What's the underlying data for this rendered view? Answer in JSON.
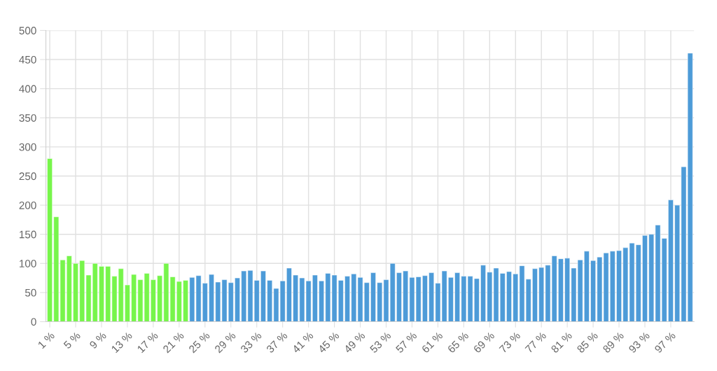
{
  "chart_data": {
    "type": "bar",
    "categories": [
      "1 %",
      null,
      null,
      null,
      "5 %",
      null,
      null,
      null,
      "9 %",
      null,
      null,
      null,
      "13 %",
      null,
      null,
      null,
      "17 %",
      null,
      null,
      null,
      "21 %",
      null,
      null,
      null,
      "25 %",
      null,
      null,
      null,
      "29 %",
      null,
      null,
      null,
      "33 %",
      null,
      null,
      null,
      "37 %",
      null,
      null,
      null,
      "41 %",
      null,
      null,
      null,
      "45 %",
      null,
      null,
      null,
      "49 %",
      null,
      null,
      null,
      "53 %",
      null,
      null,
      null,
      "57 %",
      null,
      null,
      null,
      "61 %",
      null,
      null,
      null,
      "65 %",
      null,
      null,
      null,
      "69 %",
      null,
      null,
      null,
      "73 %",
      null,
      null,
      null,
      "77 %",
      null,
      null,
      null,
      "81 %",
      null,
      null,
      null,
      "85 %",
      null,
      null,
      null,
      "89 %",
      null,
      null,
      null,
      "93 %",
      null,
      null,
      null,
      "97 %",
      null,
      null,
      null
    ],
    "values": [
      280,
      180,
      106,
      113,
      100,
      105,
      80,
      100,
      95,
      95,
      78,
      91,
      63,
      81,
      72,
      83,
      72,
      79,
      100,
      77,
      69,
      71,
      76,
      79,
      66,
      81,
      68,
      72,
      67,
      75,
      87,
      88,
      71,
      87,
      71,
      57,
      70,
      92,
      80,
      75,
      70,
      80,
      70,
      83,
      80,
      71,
      78,
      82,
      76,
      67,
      84,
      67,
      72,
      100,
      84,
      87,
      76,
      77,
      79,
      84,
      66,
      87,
      76,
      84,
      78,
      78,
      74,
      97,
      85,
      92,
      83,
      86,
      82,
      96,
      73,
      91,
      93,
      97,
      113,
      108,
      109,
      92,
      106,
      121,
      105,
      111,
      118,
      121,
      122,
      127,
      135,
      132,
      148,
      150,
      166,
      143,
      209,
      200,
      266,
      461
    ],
    "colors": [
      "#77f54b",
      "#77f54b",
      "#77f54b",
      "#77f54b",
      "#77f54b",
      "#77f54b",
      "#77f54b",
      "#77f54b",
      "#77f54b",
      "#77f54b",
      "#77f54b",
      "#77f54b",
      "#77f54b",
      "#77f54b",
      "#77f54b",
      "#77f54b",
      "#77f54b",
      "#77f54b",
      "#77f54b",
      "#77f54b",
      "#77f54b",
      "#77f54b",
      "#4d9bd8",
      "#4d9bd8",
      "#4d9bd8",
      "#4d9bd8",
      "#4d9bd8",
      "#4d9bd8",
      "#4d9bd8",
      "#4d9bd8",
      "#4d9bd8",
      "#4d9bd8",
      "#4d9bd8",
      "#4d9bd8",
      "#4d9bd8",
      "#4d9bd8",
      "#4d9bd8",
      "#4d9bd8",
      "#4d9bd8",
      "#4d9bd8",
      "#4d9bd8",
      "#4d9bd8",
      "#4d9bd8",
      "#4d9bd8",
      "#4d9bd8",
      "#4d9bd8",
      "#4d9bd8",
      "#4d9bd8",
      "#4d9bd8",
      "#4d9bd8",
      "#4d9bd8",
      "#4d9bd8",
      "#4d9bd8",
      "#4d9bd8",
      "#4d9bd8",
      "#4d9bd8",
      "#4d9bd8",
      "#4d9bd8",
      "#4d9bd8",
      "#4d9bd8",
      "#4d9bd8",
      "#4d9bd8",
      "#4d9bd8",
      "#4d9bd8",
      "#4d9bd8",
      "#4d9bd8",
      "#4d9bd8",
      "#4d9bd8",
      "#4d9bd8",
      "#4d9bd8",
      "#4d9bd8",
      "#4d9bd8",
      "#4d9bd8",
      "#4d9bd8",
      "#4d9bd8",
      "#4d9bd8",
      "#4d9bd8",
      "#4d9bd8",
      "#4d9bd8",
      "#4d9bd8",
      "#4d9bd8",
      "#4d9bd8",
      "#4d9bd8",
      "#4d9bd8",
      "#4d9bd8",
      "#4d9bd8",
      "#4d9bd8",
      "#4d9bd8",
      "#4d9bd8",
      "#4d9bd8",
      "#4d9bd8",
      "#4d9bd8",
      "#4d9bd8",
      "#4d9bd8",
      "#4d9bd8",
      "#4d9bd8",
      "#4d9bd8",
      "#4d9bd8",
      "#4d9bd8",
      "#4d9bd8"
    ],
    "ylim": [
      0,
      500
    ],
    "yticks": [
      0,
      50,
      100,
      150,
      200,
      250,
      300,
      350,
      400,
      450,
      500
    ],
    "grid": true,
    "legend": false
  }
}
